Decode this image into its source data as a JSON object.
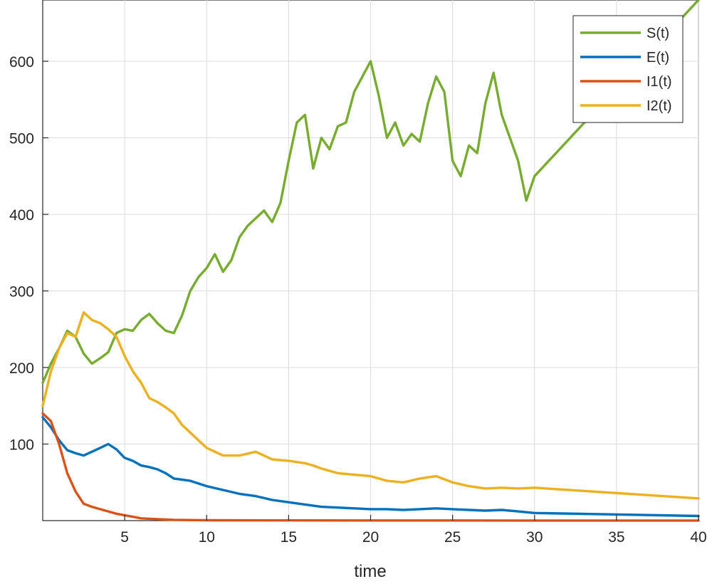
{
  "chart_data": {
    "type": "line",
    "title": "",
    "xlabel": "time",
    "ylabel": "",
    "xlim": [
      0,
      40
    ],
    "ylim": [
      0,
      680
    ],
    "xticks": [
      5,
      10,
      15,
      20,
      25,
      30,
      35,
      40
    ],
    "yticks": [
      100,
      200,
      300,
      400,
      500,
      600
    ],
    "grid": true,
    "legend_position": "top-right",
    "series": [
      {
        "name": "S(t)",
        "color": "#77AC30",
        "points": [
          [
            0,
            180
          ],
          [
            0.5,
            205
          ],
          [
            1,
            225
          ],
          [
            1.5,
            248
          ],
          [
            2,
            240
          ],
          [
            2.5,
            218
          ],
          [
            3,
            205
          ],
          [
            3.5,
            212
          ],
          [
            4,
            220
          ],
          [
            4.5,
            245
          ],
          [
            5,
            250
          ],
          [
            5.5,
            248
          ],
          [
            6,
            262
          ],
          [
            6.5,
            270
          ],
          [
            7,
            258
          ],
          [
            7.5,
            248
          ],
          [
            8,
            245
          ],
          [
            8.5,
            268
          ],
          [
            9,
            300
          ],
          [
            9.5,
            318
          ],
          [
            10,
            330
          ],
          [
            10.5,
            348
          ],
          [
            11,
            325
          ],
          [
            11.5,
            340
          ],
          [
            12,
            370
          ],
          [
            12.5,
            385
          ],
          [
            13,
            395
          ],
          [
            13.5,
            405
          ],
          [
            14,
            390
          ],
          [
            14.5,
            415
          ],
          [
            15,
            470
          ],
          [
            15.5,
            520
          ],
          [
            16,
            530
          ],
          [
            16.5,
            460
          ],
          [
            17,
            500
          ],
          [
            17.5,
            485
          ],
          [
            18,
            515
          ],
          [
            18.5,
            520
          ],
          [
            19,
            560
          ],
          [
            19.5,
            580
          ],
          [
            20,
            600
          ],
          [
            20.5,
            555
          ],
          [
            21,
            500
          ],
          [
            21.5,
            520
          ],
          [
            22,
            490
          ],
          [
            22.5,
            505
          ],
          [
            23,
            495
          ],
          [
            23.5,
            545
          ],
          [
            24,
            580
          ],
          [
            24.5,
            560
          ],
          [
            25,
            470
          ],
          [
            25.5,
            450
          ],
          [
            26,
            490
          ],
          [
            26.5,
            480
          ],
          [
            27,
            545
          ],
          [
            27.5,
            585
          ],
          [
            28,
            530
          ],
          [
            28.5,
            500
          ],
          [
            29,
            470
          ],
          [
            29.5,
            418
          ],
          [
            30,
            450
          ],
          [
            40,
            680
          ]
        ]
      },
      {
        "name": "E(t)",
        "color": "#0072BD",
        "points": [
          [
            0,
            135
          ],
          [
            0.5,
            122
          ],
          [
            1,
            105
          ],
          [
            1.5,
            92
          ],
          [
            2,
            88
          ],
          [
            2.5,
            85
          ],
          [
            3,
            90
          ],
          [
            3.5,
            95
          ],
          [
            4,
            100
          ],
          [
            4.5,
            93
          ],
          [
            5,
            82
          ],
          [
            5.5,
            78
          ],
          [
            6,
            72
          ],
          [
            6.5,
            70
          ],
          [
            7,
            67
          ],
          [
            7.5,
            62
          ],
          [
            8,
            55
          ],
          [
            9,
            52
          ],
          [
            10,
            45
          ],
          [
            11,
            40
          ],
          [
            12,
            35
          ],
          [
            13,
            32
          ],
          [
            14,
            27
          ],
          [
            15,
            24
          ],
          [
            16,
            21
          ],
          [
            17,
            18
          ],
          [
            18,
            17
          ],
          [
            19,
            16
          ],
          [
            20,
            15
          ],
          [
            21,
            15
          ],
          [
            22,
            14
          ],
          [
            23,
            15
          ],
          [
            24,
            16
          ],
          [
            25,
            15
          ],
          [
            26,
            14
          ],
          [
            27,
            13
          ],
          [
            28,
            14
          ],
          [
            29,
            12
          ],
          [
            30,
            10
          ],
          [
            40,
            6
          ]
        ]
      },
      {
        "name": "I1(t)",
        "color": "#D95319",
        "points": [
          [
            0,
            140
          ],
          [
            0.5,
            130
          ],
          [
            1,
            100
          ],
          [
            1.5,
            62
          ],
          [
            2,
            38
          ],
          [
            2.5,
            22
          ],
          [
            3,
            18
          ],
          [
            3.5,
            15
          ],
          [
            4,
            12
          ],
          [
            4.5,
            9
          ],
          [
            5,
            7
          ],
          [
            5.5,
            5
          ],
          [
            6,
            3
          ],
          [
            7,
            2
          ],
          [
            8,
            1
          ],
          [
            10,
            0.5
          ],
          [
            15,
            0.3
          ],
          [
            20,
            0.2
          ],
          [
            30,
            0.1
          ],
          [
            40,
            0.1
          ]
        ]
      },
      {
        "name": "I2(t)",
        "color": "#EDB120",
        "points": [
          [
            0,
            150
          ],
          [
            0.5,
            195
          ],
          [
            1,
            225
          ],
          [
            1.5,
            245
          ],
          [
            2,
            240
          ],
          [
            2.5,
            272
          ],
          [
            3,
            262
          ],
          [
            3.5,
            258
          ],
          [
            4,
            250
          ],
          [
            4.5,
            240
          ],
          [
            5,
            215
          ],
          [
            5.5,
            195
          ],
          [
            6,
            180
          ],
          [
            6.5,
            160
          ],
          [
            7,
            155
          ],
          [
            7.5,
            148
          ],
          [
            8,
            140
          ],
          [
            8.5,
            125
          ],
          [
            9,
            115
          ],
          [
            9.5,
            105
          ],
          [
            10,
            95
          ],
          [
            11,
            85
          ],
          [
            12,
            85
          ],
          [
            13,
            90
          ],
          [
            14,
            80
          ],
          [
            15,
            78
          ],
          [
            16,
            75
          ],
          [
            16.5,
            72
          ],
          [
            17,
            68
          ],
          [
            18,
            62
          ],
          [
            19,
            60
          ],
          [
            20,
            58
          ],
          [
            21,
            52
          ],
          [
            22,
            50
          ],
          [
            23,
            55
          ],
          [
            24,
            58
          ],
          [
            25,
            50
          ],
          [
            26,
            45
          ],
          [
            27,
            42
          ],
          [
            28,
            43
          ],
          [
            29,
            42
          ],
          [
            30,
            43
          ],
          [
            40,
            29
          ]
        ]
      }
    ]
  }
}
